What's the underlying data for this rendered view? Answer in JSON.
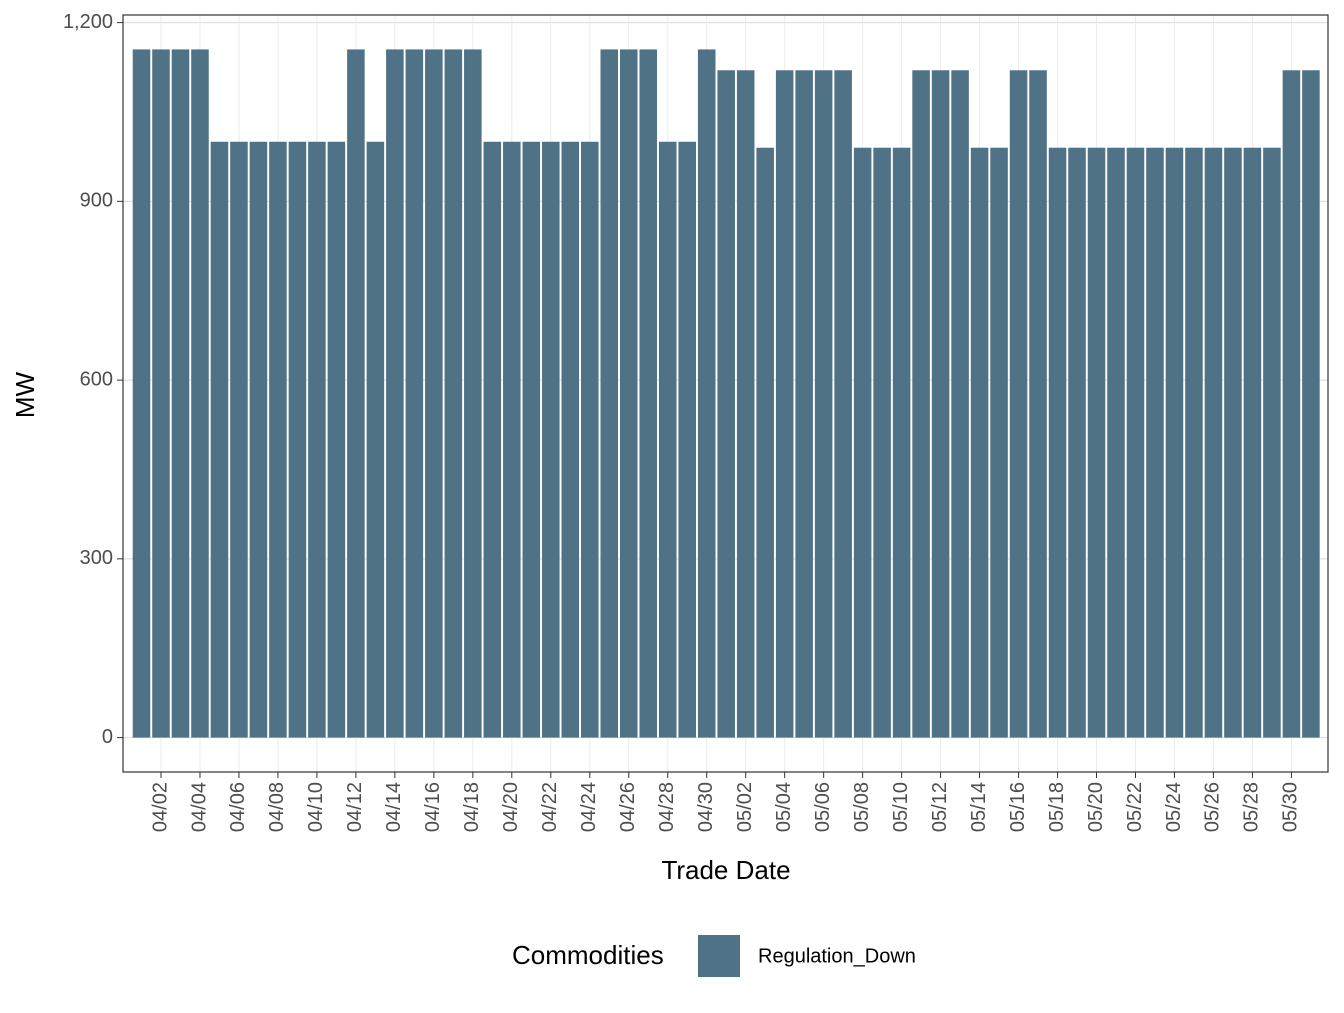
{
  "chart_data": {
    "type": "bar",
    "x_label": "Trade Date",
    "y_label": "MW",
    "legend_title": "Commodities",
    "legend_position": "bottom",
    "grid": true,
    "categories": [
      null,
      "04/02",
      null,
      "04/04",
      null,
      "04/06",
      null,
      "04/08",
      null,
      "04/10",
      null,
      "04/12",
      null,
      "04/14",
      null,
      "04/16",
      null,
      "04/18",
      null,
      "04/20",
      null,
      "04/22",
      null,
      "04/24",
      null,
      "04/26",
      null,
      "04/28",
      null,
      "04/30",
      null,
      "05/02",
      null,
      "05/04",
      null,
      "05/06",
      null,
      "05/08",
      null,
      "05/10",
      null,
      "05/12",
      null,
      "05/14",
      null,
      "05/16",
      null,
      "05/18",
      null,
      "05/20",
      null,
      "05/22",
      null,
      "05/24",
      null,
      "05/26",
      null,
      "05/28",
      null,
      "05/30",
      null
    ],
    "series": [
      {
        "name": "Regulation_Down",
        "color": "#4f7286",
        "values": [
          1155,
          1155,
          1155,
          1155,
          1000,
          1000,
          1000,
          1000,
          1000,
          1000,
          1000,
          1155,
          1000,
          1155,
          1155,
          1155,
          1155,
          1155,
          1000,
          1000,
          1000,
          1000,
          1000,
          1000,
          1155,
          1155,
          1155,
          1000,
          1000,
          1155,
          1120,
          1120,
          990,
          1120,
          1120,
          1120,
          1120,
          990,
          990,
          990,
          1120,
          1120,
          1120,
          990,
          990,
          1120,
          1120,
          990,
          990,
          990,
          990,
          990,
          990,
          990,
          990,
          990,
          990,
          990,
          990,
          1120,
          1120
        ]
      }
    ],
    "ylim": [
      -57.75,
      1212.75
    ],
    "yticks": [
      0,
      300,
      600,
      900,
      {
        "value": 1200,
        "label": "1,200"
      }
    ]
  }
}
